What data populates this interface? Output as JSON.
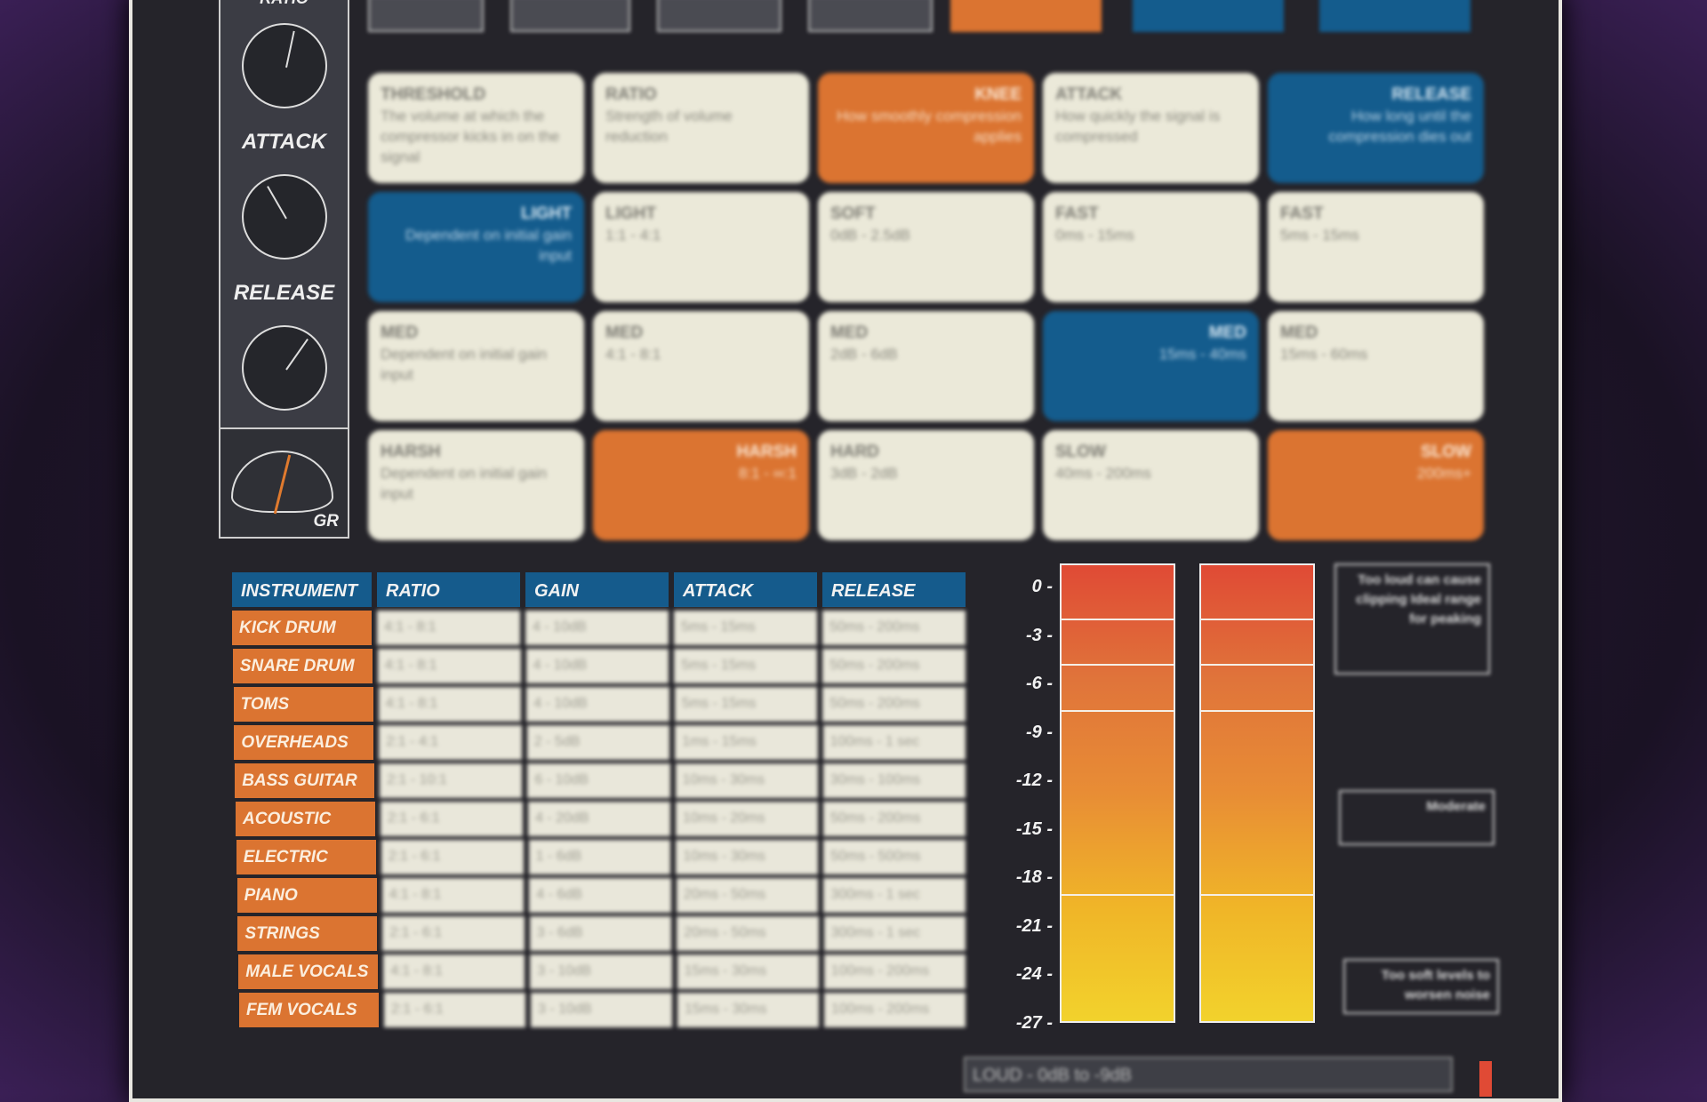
{
  "knobs": {
    "top_label": "RATIO",
    "attack_label": "ATTACK",
    "release_label": "RELEASE",
    "gr_label": "GR"
  },
  "grid": [
    [
      {
        "title": "THRESHOLD",
        "text": "The volume at which the compressor kicks in on the signal",
        "style": "plain"
      },
      {
        "title": "RATIO",
        "text": "Strength of volume reduction",
        "style": "plain"
      },
      {
        "title": "KNEE",
        "text": "How smoothly compression applies",
        "style": "orange"
      },
      {
        "title": "ATTACK",
        "text": "How quickly the signal is compressed",
        "style": "plain"
      },
      {
        "title": "RELEASE",
        "text": "How long until the compression dies out",
        "style": "blue"
      }
    ],
    [
      {
        "title": "LIGHT",
        "text": "Dependent on initial gain input",
        "style": "blue"
      },
      {
        "title": "LIGHT",
        "text": "1:1 - 4:1",
        "style": "plain"
      },
      {
        "title": "SOFT",
        "text": "0dB - 2.5dB",
        "style": "plain"
      },
      {
        "title": "FAST",
        "text": "0ms - 15ms",
        "style": "plain"
      },
      {
        "title": "FAST",
        "text": "5ms - 15ms",
        "style": "plain"
      }
    ],
    [
      {
        "title": "MED",
        "text": "Dependent on initial gain input",
        "style": "plain"
      },
      {
        "title": "MED",
        "text": "4:1 - 8:1",
        "style": "plain"
      },
      {
        "title": "MED",
        "text": "2dB - 6dB",
        "style": "plain"
      },
      {
        "title": "MED",
        "text": "15ms - 40ms",
        "style": "blue"
      },
      {
        "title": "MED",
        "text": "15ms - 60ms",
        "style": "plain"
      }
    ],
    [
      {
        "title": "HARSH",
        "text": "Dependent on initial gain input",
        "style": "plain"
      },
      {
        "title": "HARSH",
        "text": "8:1 - ∞:1",
        "style": "orange"
      },
      {
        "title": "HARD",
        "text": "3dB - 2dB",
        "style": "plain"
      },
      {
        "title": "SLOW",
        "text": "40ms - 200ms",
        "style": "plain"
      },
      {
        "title": "SLOW",
        "text": "200ms+",
        "style": "orange"
      }
    ]
  ],
  "table": {
    "headers": [
      "INSTRUMENT",
      "RATIO",
      "GAIN",
      "ATTACK",
      "RELEASE"
    ],
    "rows": [
      [
        "KICK DRUM",
        "4:1 - 8:1",
        "4 - 10dB",
        "5ms - 15ms",
        "50ms - 200ms"
      ],
      [
        "SNARE DRUM",
        "4:1 - 8:1",
        "4 - 10dB",
        "5ms - 15ms",
        "50ms - 200ms"
      ],
      [
        "TOMS",
        "4:1 - 8:1",
        "4 - 10dB",
        "5ms - 15ms",
        "50ms - 200ms"
      ],
      [
        "OVERHEADS",
        "2:1 - 4:1",
        "2 - 5dB",
        "1ms - 15ms",
        "100ms - 1 sec"
      ],
      [
        "BASS GUITAR",
        "2:1 - 10:1",
        "6 - 10dB",
        "10ms - 30ms",
        "30ms - 100ms"
      ],
      [
        "ACOUSTIC",
        "2:1 - 6:1",
        "4 - 20dB",
        "10ms - 20ms",
        "50ms - 200ms"
      ],
      [
        "ELECTRIC",
        "2:1 - 6:1",
        "1 - 6dB",
        "10ms - 30ms",
        "50ms - 500ms"
      ],
      [
        "PIANO",
        "4:1 - 8:1",
        "4 - 6dB",
        "20ms - 50ms",
        "300ms - 1 sec"
      ],
      [
        "STRINGS",
        "2:1 - 6:1",
        "3 - 6dB",
        "20ms - 50ms",
        "300ms - 1 sec"
      ],
      [
        "MALE VOCALS",
        "4:1 - 8:1",
        "3 - 10dB",
        "15ms - 30ms",
        "100ms - 200ms"
      ],
      [
        "FEM VOCALS",
        "2:1 - 6:1",
        "3 - 10dB",
        "15ms - 30ms",
        "100ms - 200ms"
      ]
    ]
  },
  "meter": {
    "scale": [
      "0 -",
      "-3 -",
      "-6 -",
      "-9 -",
      "-12 -",
      "-15 -",
      "-18 -",
      "-21 -",
      "-24 -",
      "-27 -"
    ],
    "lines_db": [
      -3,
      -6,
      -9,
      -21
    ]
  },
  "notes": [
    "Too loud can cause clipping Ideal range for peaking",
    "Moderate",
    "Too soft levels to worsen noise"
  ],
  "bottom_label": "LOUD - 0dB to -9dB"
}
